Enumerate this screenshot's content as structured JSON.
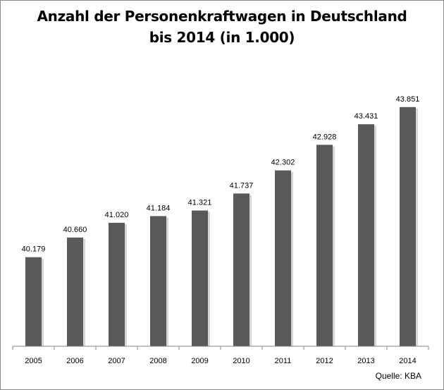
{
  "chart_data": {
    "type": "bar",
    "title_lines": [
      "Anzahl der Personenkraftwagen in Deutschland",
      "bis 2014 (in 1.000)"
    ],
    "categories": [
      "2005",
      "2006",
      "2007",
      "2008",
      "2009",
      "2010",
      "2011",
      "2012",
      "2013",
      "2014"
    ],
    "values": [
      40179,
      40660,
      41020,
      41184,
      41321,
      41737,
      42302,
      42928,
      43431,
      43851
    ],
    "value_labels": [
      "40.179",
      "40.660",
      "41.020",
      "41.184",
      "41.321",
      "41.737",
      "42.302",
      "42.928",
      "43.431",
      "43.851"
    ],
    "xlabel": "",
    "ylabel": "",
    "ylim": [
      38000,
      44400
    ],
    "grid": false,
    "bar_color": "#595959"
  },
  "source": "Quelle: KBA"
}
